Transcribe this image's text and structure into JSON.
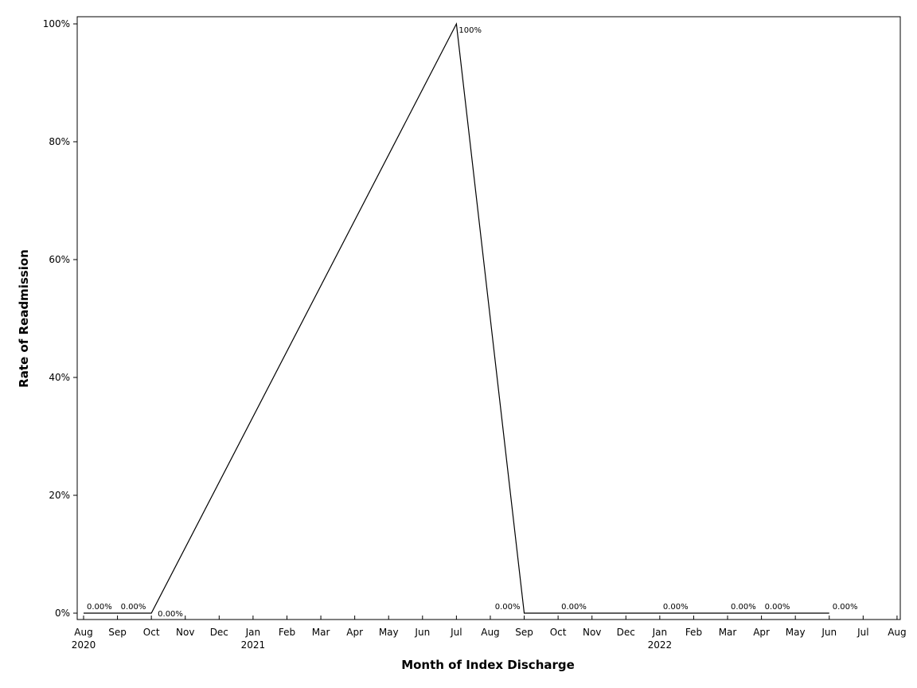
{
  "chart_data": {
    "type": "line",
    "title": "",
    "xlabel": "Month of Index Discharge",
    "ylabel": "Rate of Readmission",
    "x_range": [
      "2020-08",
      "2022-08"
    ],
    "ylim": [
      0,
      100
    ],
    "y_ticks": [
      {
        "value": 0,
        "label": "0%"
      },
      {
        "value": 20,
        "label": "20%"
      },
      {
        "value": 40,
        "label": "40%"
      },
      {
        "value": 60,
        "label": "60%"
      },
      {
        "value": 80,
        "label": "80%"
      },
      {
        "value": 100,
        "label": "100%"
      }
    ],
    "x_ticks": [
      {
        "date": "2020-08",
        "month": "Aug",
        "year": "2020"
      },
      {
        "date": "2020-09",
        "month": "Sep",
        "year": ""
      },
      {
        "date": "2020-10",
        "month": "Oct",
        "year": ""
      },
      {
        "date": "2020-11",
        "month": "Nov",
        "year": ""
      },
      {
        "date": "2020-12",
        "month": "Dec",
        "year": ""
      },
      {
        "date": "2021-01",
        "month": "Jan",
        "year": "2021"
      },
      {
        "date": "2021-02",
        "month": "Feb",
        "year": ""
      },
      {
        "date": "2021-03",
        "month": "Mar",
        "year": ""
      },
      {
        "date": "2021-04",
        "month": "Apr",
        "year": ""
      },
      {
        "date": "2021-05",
        "month": "May",
        "year": ""
      },
      {
        "date": "2021-06",
        "month": "Jun",
        "year": ""
      },
      {
        "date": "2021-07",
        "month": "Jul",
        "year": ""
      },
      {
        "date": "2021-08",
        "month": "Aug",
        "year": ""
      },
      {
        "date": "2021-09",
        "month": "Sep",
        "year": ""
      },
      {
        "date": "2021-10",
        "month": "Oct",
        "year": ""
      },
      {
        "date": "2021-11",
        "month": "Nov",
        "year": ""
      },
      {
        "date": "2021-12",
        "month": "Dec",
        "year": ""
      },
      {
        "date": "2022-01",
        "month": "Jan",
        "year": "2022"
      },
      {
        "date": "2022-02",
        "month": "Feb",
        "year": ""
      },
      {
        "date": "2022-03",
        "month": "Mar",
        "year": ""
      },
      {
        "date": "2022-04",
        "month": "Apr",
        "year": ""
      },
      {
        "date": "2022-05",
        "month": "May",
        "year": ""
      },
      {
        "date": "2022-06",
        "month": "Jun",
        "year": ""
      },
      {
        "date": "2022-07",
        "month": "Jul",
        "year": ""
      },
      {
        "date": "2022-08",
        "month": "Aug",
        "year": ""
      }
    ],
    "series": [
      {
        "points": [
          {
            "x": "2020-08",
            "y": 0,
            "label": "0.00%",
            "label_pos": "above-right"
          },
          {
            "x": "2020-09",
            "y": 0,
            "label": "0.00%",
            "label_pos": "above-right"
          },
          {
            "x": "2020-10",
            "y": 0,
            "label": "0.00%",
            "label_pos": "below-right"
          },
          {
            "x": "2021-07",
            "y": 100,
            "label": "100%",
            "label_pos": "right"
          },
          {
            "x": "2021-09",
            "y": 0,
            "label": "0.00%",
            "label_pos": "above-left"
          },
          {
            "x": "2021-10",
            "y": 0,
            "label": "0.00%",
            "label_pos": "above-right"
          },
          {
            "x": "2022-01",
            "y": 0,
            "label": "0.00%",
            "label_pos": "above-right"
          },
          {
            "x": "2022-03",
            "y": 0,
            "label": "0.00%",
            "label_pos": "above-right"
          },
          {
            "x": "2022-04",
            "y": 0,
            "label": "0.00%",
            "label_pos": "above-right"
          },
          {
            "x": "2022-06",
            "y": 0,
            "label": "0.00%",
            "label_pos": "above-right"
          }
        ]
      }
    ],
    "grid": false,
    "legend": "none",
    "line_color": "#000000"
  }
}
